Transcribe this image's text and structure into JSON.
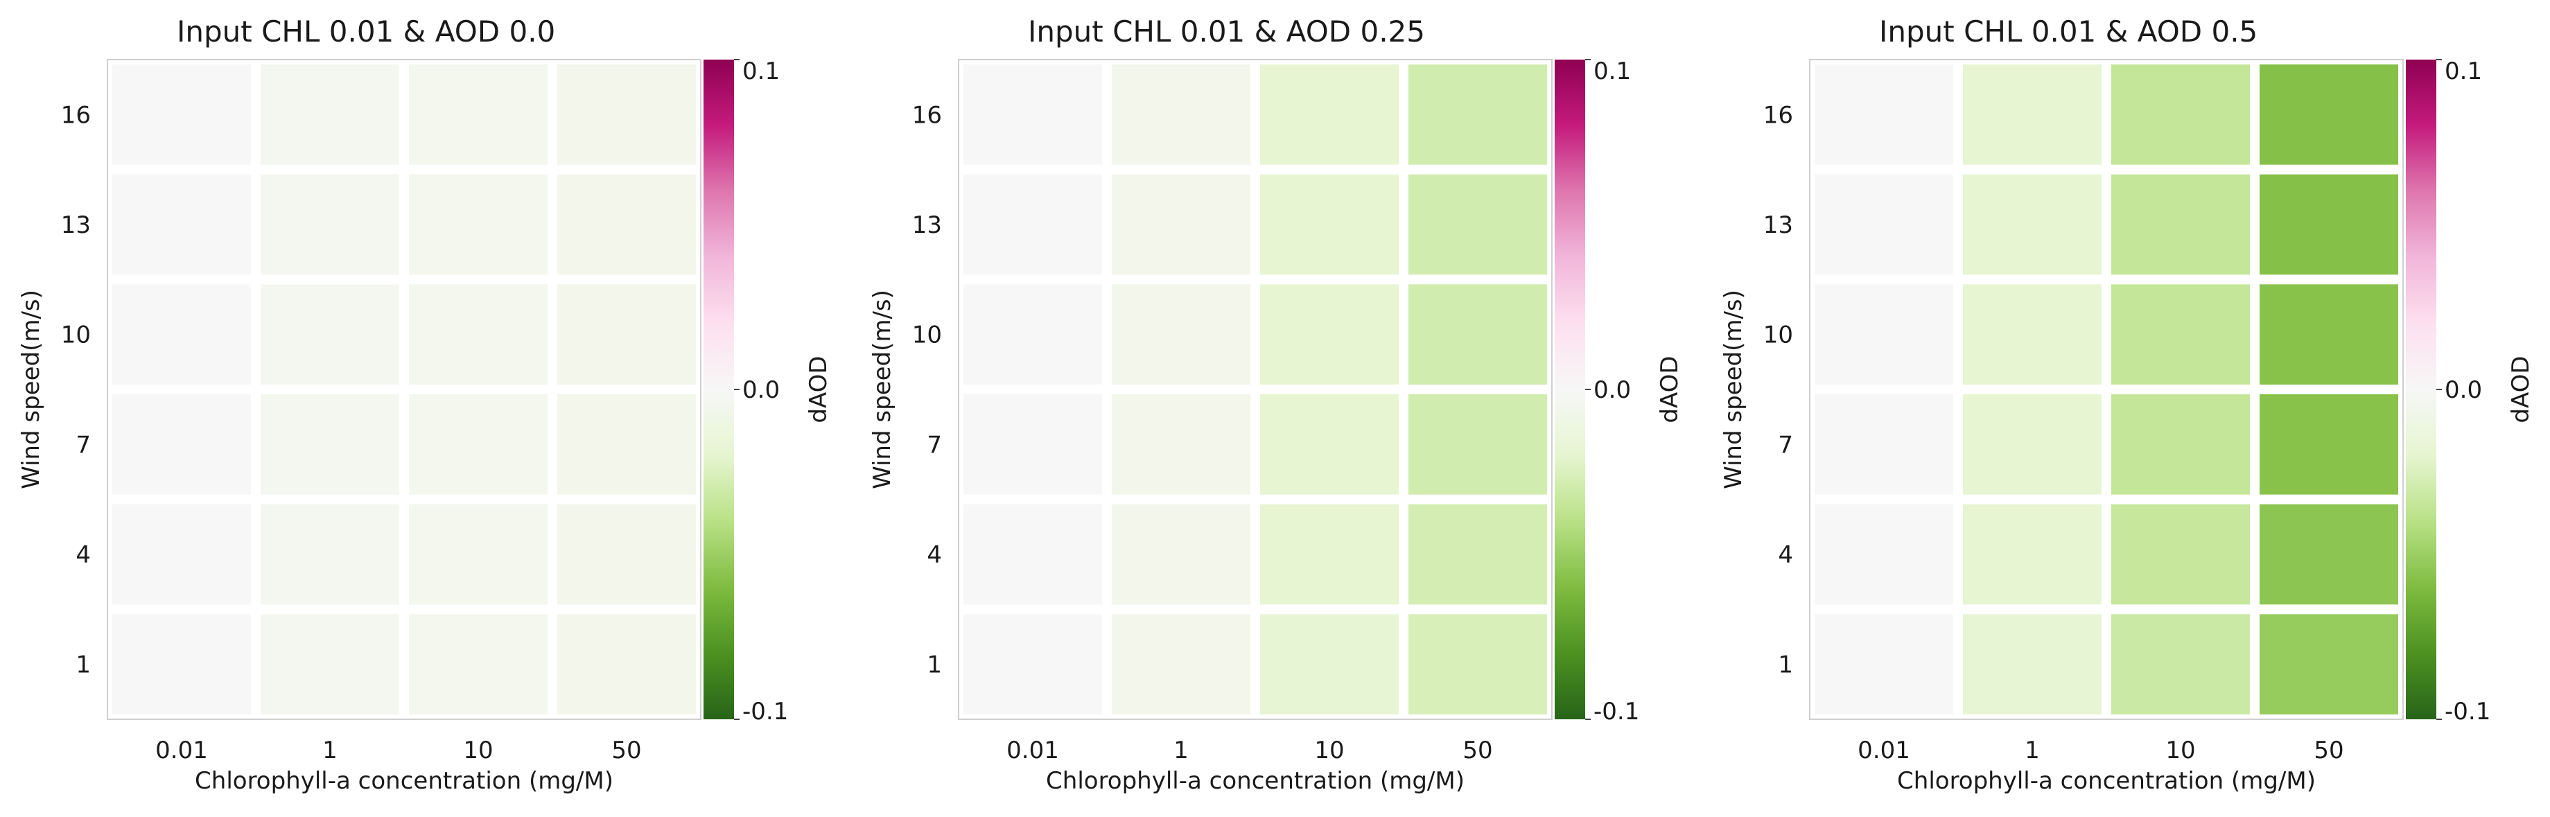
{
  "chart_data": [
    {
      "type": "heatmap",
      "title": "Input CHL 0.01 & AOD 0.0",
      "xlabel": "Chlorophyll-a concentration (mg/M)",
      "ylabel": "Wind speed(m/s)",
      "x_categories": [
        "0.01",
        "1",
        "10",
        "50"
      ],
      "y_categories": [
        "1",
        "4",
        "7",
        "10",
        "13",
        "16"
      ],
      "values": [
        [
          0.0,
          -0.004,
          -0.005,
          -0.006
        ],
        [
          0.0,
          -0.004,
          -0.005,
          -0.006
        ],
        [
          0.0,
          -0.004,
          -0.005,
          -0.006
        ],
        [
          0.0,
          -0.004,
          -0.005,
          -0.006
        ],
        [
          0.0,
          -0.004,
          -0.005,
          -0.006
        ],
        [
          0.0,
          -0.004,
          -0.005,
          -0.006
        ]
      ],
      "colorbar": {
        "label": "dAOD",
        "min": -0.1,
        "max": 0.1,
        "ticks": [
          "-0.1",
          "0.0",
          "0.1"
        ]
      }
    },
    {
      "type": "heatmap",
      "title": "Input CHL 0.01 & AOD 0.25",
      "xlabel": "Chlorophyll-a concentration (mg/M)",
      "ylabel": "Wind speed(m/s)",
      "x_categories": [
        "0.01",
        "1",
        "10",
        "50"
      ],
      "y_categories": [
        "1",
        "4",
        "7",
        "10",
        "13",
        "16"
      ],
      "values": [
        [
          0.0,
          -0.006,
          -0.018,
          -0.026
        ],
        [
          0.0,
          -0.006,
          -0.019,
          -0.028
        ],
        [
          0.0,
          -0.006,
          -0.019,
          -0.029
        ],
        [
          0.0,
          -0.006,
          -0.019,
          -0.029
        ],
        [
          0.0,
          -0.006,
          -0.019,
          -0.029
        ],
        [
          0.0,
          -0.006,
          -0.019,
          -0.029
        ]
      ],
      "colorbar": {
        "label": "dAOD",
        "min": -0.1,
        "max": 0.1,
        "ticks": [
          "-0.1",
          "0.0",
          "0.1"
        ]
      }
    },
    {
      "type": "heatmap",
      "title": "Input CHL 0.01 & AOD 0.5",
      "xlabel": "Chlorophyll-a concentration (mg/M)",
      "ylabel": "Wind speed(m/s)",
      "x_categories": [
        "0.01",
        "1",
        "10",
        "50"
      ],
      "y_categories": [
        "1",
        "4",
        "7",
        "10",
        "13",
        "16"
      ],
      "values": [
        [
          0.0,
          -0.018,
          -0.032,
          -0.052
        ],
        [
          0.0,
          -0.019,
          -0.034,
          -0.055
        ],
        [
          0.0,
          -0.019,
          -0.035,
          -0.057
        ],
        [
          0.0,
          -0.019,
          -0.035,
          -0.057
        ],
        [
          0.0,
          -0.019,
          -0.035,
          -0.058
        ],
        [
          0.0,
          -0.019,
          -0.035,
          -0.058
        ]
      ],
      "colorbar": {
        "label": "dAOD",
        "min": -0.1,
        "max": 0.1,
        "ticks": [
          "-0.1",
          "0.0",
          "0.1"
        ]
      }
    }
  ],
  "colors": {
    "scale_low": "#276419",
    "scale_mid": "#f7f7f7",
    "scale_high": "#8e0152",
    "frame": "#cfcfcf",
    "cell_gap": "#ffffff"
  }
}
